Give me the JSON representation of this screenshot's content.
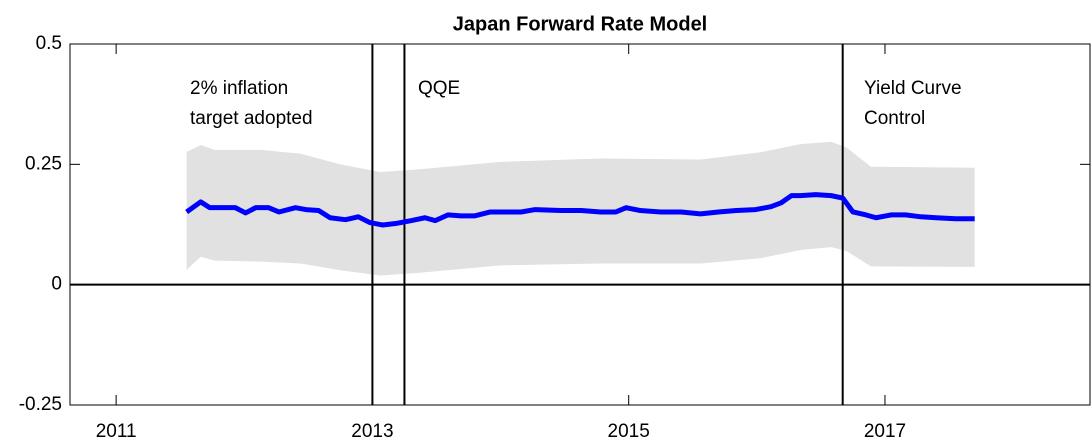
{
  "chart_data": {
    "type": "line",
    "title": "Japan Forward Rate Model",
    "xlim": [
      2010.64,
      2018.6
    ],
    "xticks": [
      2011,
      2013,
      2015,
      2017
    ],
    "ylim": [
      -0.25,
      0.5
    ],
    "yticks": [
      -0.25,
      0,
      0.25,
      0.5
    ],
    "x": [
      2011.55,
      2011.66,
      2011.73,
      2011.93,
      2012.01,
      2012.09,
      2012.19,
      2012.27,
      2012.4,
      2012.48,
      2012.58,
      2012.67,
      2012.79,
      2012.89,
      2012.98,
      2013.08,
      2013.18,
      2013.3,
      2013.41,
      2013.49,
      2013.59,
      2013.69,
      2013.8,
      2013.92,
      2014.04,
      2014.16,
      2014.27,
      2014.47,
      2014.63,
      2014.78,
      2014.9,
      2014.98,
      2015.09,
      2015.25,
      2015.41,
      2015.56,
      2015.7,
      2015.84,
      2015.99,
      2016.11,
      2016.19,
      2016.27,
      2016.34,
      2016.46,
      2016.58,
      2016.67,
      2016.75,
      2016.85,
      2016.93,
      2017.05,
      2017.16,
      2017.28,
      2017.4,
      2017.55,
      2017.7
    ],
    "series": [
      {
        "color": "#0000ff",
        "values": [
          0.151,
          0.172,
          0.16,
          0.16,
          0.149,
          0.16,
          0.16,
          0.151,
          0.16,
          0.156,
          0.154,
          0.139,
          0.135,
          0.141,
          0.129,
          0.124,
          0.127,
          0.133,
          0.139,
          0.133,
          0.145,
          0.143,
          0.143,
          0.151,
          0.151,
          0.151,
          0.156,
          0.154,
          0.154,
          0.151,
          0.151,
          0.16,
          0.154,
          0.151,
          0.151,
          0.147,
          0.151,
          0.154,
          0.156,
          0.162,
          0.17,
          0.185,
          0.185,
          0.187,
          0.185,
          0.18,
          0.151,
          0.145,
          0.139,
          0.145,
          0.145,
          0.141,
          0.139,
          0.137,
          0.137
        ]
      }
    ],
    "band": {
      "color": "#e1e1e1",
      "x": [
        2011.55,
        2011.66,
        2011.77,
        2012.13,
        2012.44,
        2012.75,
        2013.06,
        2013.38,
        2014.0,
        2014.78,
        2015.56,
        2016.03,
        2016.34,
        2016.58,
        2016.7,
        2016.89,
        2017.7
      ],
      "upper": [
        0.276,
        0.29,
        0.28,
        0.28,
        0.272,
        0.25,
        0.234,
        0.24,
        0.255,
        0.262,
        0.26,
        0.275,
        0.292,
        0.297,
        0.285,
        0.245,
        0.243
      ],
      "lower": [
        0.031,
        0.058,
        0.05,
        0.048,
        0.044,
        0.03,
        0.019,
        0.025,
        0.04,
        0.044,
        0.044,
        0.055,
        0.072,
        0.078,
        0.07,
        0.038,
        0.037
      ]
    },
    "vlines": [
      2013,
      2013.25,
      2016.67
    ],
    "hline": 0,
    "annotations": [
      {
        "lines": [
          "2% inflation",
          "target adopted"
        ]
      },
      {
        "lines": [
          "QQE"
        ]
      },
      {
        "lines": [
          "Yield Curve",
          "Control"
        ]
      }
    ]
  }
}
